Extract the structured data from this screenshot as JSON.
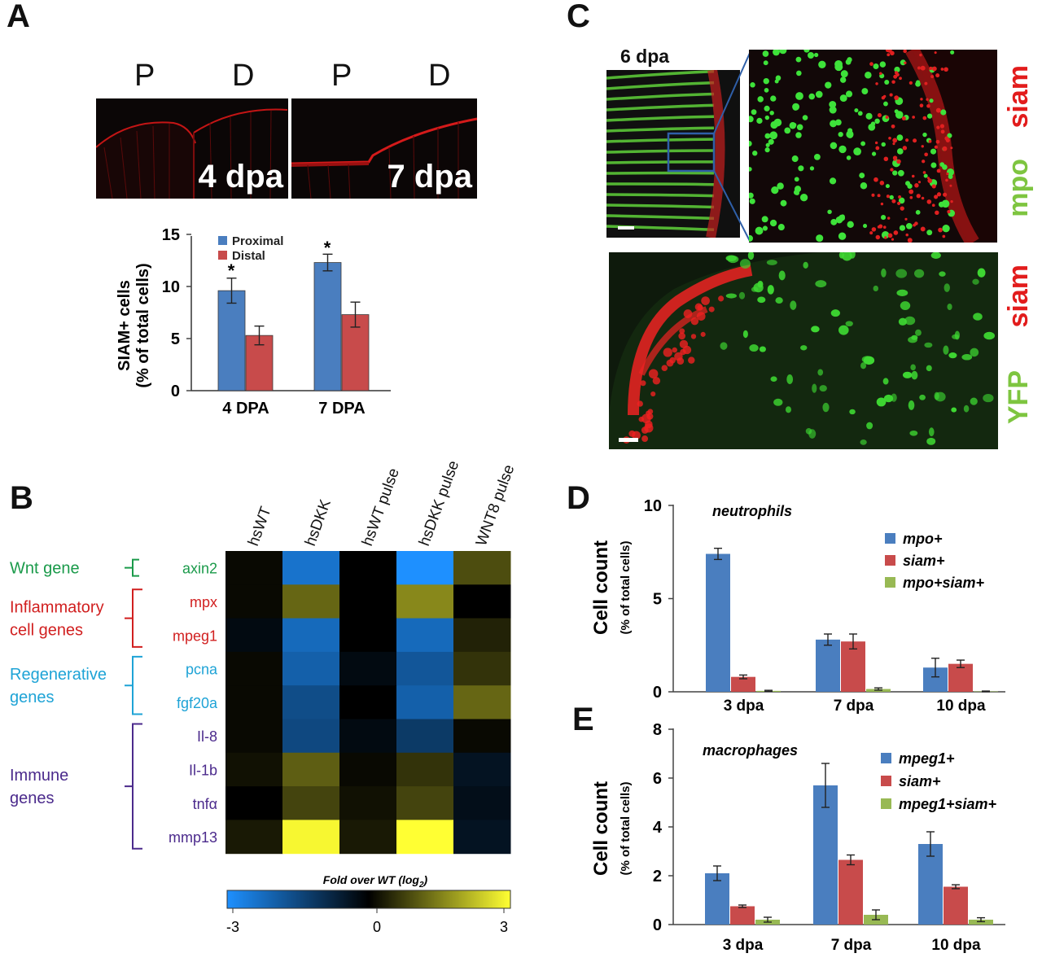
{
  "panels": {
    "A": "A",
    "B": "B",
    "C": "C",
    "D": "D",
    "E": "E"
  },
  "panelA": {
    "image_labels": {
      "p1": "P",
      "d1": "D",
      "p2": "P",
      "d2": "D"
    },
    "time_labels": [
      "4 dpa",
      "7 dpa"
    ]
  },
  "panelC": {
    "top_time": "6 dpa",
    "top_channels": {
      "red": "siam",
      "green": "mpo"
    },
    "bottom_channels": {
      "red": "siam",
      "green": "YFP"
    }
  },
  "heatmap": {
    "columns": [
      "hsWT",
      "hsDKK",
      "hsWT pulse",
      "hsDKK pulse",
      "WNT8 pulse"
    ],
    "rows": [
      "axin2",
      "mpx",
      "mpeg1",
      "pcna",
      "fgf20a",
      "Il-8",
      "Il-1b",
      "tnfα",
      "mmp13"
    ],
    "row_colors": [
      "#1a9a4a",
      "#d11f1f",
      "#d11f1f",
      "#1ea3d6",
      "#1ea3d6",
      "#4b2a8c",
      "#4b2a8c",
      "#4b2a8c",
      "#4b2a8c"
    ],
    "groups": [
      {
        "label": "Wnt gene",
        "color": "#1a9a4a",
        "rows": [
          0,
          0
        ]
      },
      {
        "label": "Inflammatory\ncell genes",
        "color": "#d11f1f",
        "rows": [
          1,
          2
        ]
      },
      {
        "label": "Regenerative\ngenes",
        "color": "#1ea3d6",
        "rows": [
          3,
          4
        ]
      },
      {
        "label": "Immune\ngenes",
        "color": "#4b2a8c",
        "rows": [
          5,
          8
        ]
      }
    ],
    "values": [
      [
        0.1,
        -2.4,
        0.0,
        -3.0,
        0.9
      ],
      [
        0.1,
        1.2,
        0.0,
        1.6,
        0.0
      ],
      [
        -0.2,
        -2.2,
        0.0,
        -2.2,
        0.4
      ],
      [
        0.1,
        -2.0,
        -0.2,
        -1.8,
        0.6
      ],
      [
        0.1,
        -1.6,
        0.0,
        -2.0,
        1.2
      ],
      [
        0.1,
        -1.5,
        -0.2,
        -1.2,
        0.1
      ],
      [
        0.2,
        1.1,
        0.1,
        0.6,
        -0.4
      ],
      [
        0.0,
        0.8,
        0.2,
        0.8,
        -0.3
      ],
      [
        0.3,
        2.9,
        0.3,
        3.0,
        -0.4
      ]
    ],
    "colorbar": {
      "title": "Fold over WT (log",
      "title_sub": "2",
      "title_end": ")",
      "ticks": [
        "-3",
        "0",
        "3"
      ],
      "min": -3,
      "max": 3
    },
    "palette": {
      "neg": "#1e90ff",
      "mid": "#000000",
      "pos": "#ffff33"
    }
  },
  "chart_data": [
    {
      "id": "A",
      "type": "bar",
      "categories": [
        "4 DPA",
        "7 DPA"
      ],
      "series": [
        {
          "name": "Proximal",
          "color": "#4a7ebf",
          "values": [
            9.6,
            12.3
          ],
          "errors": [
            1.2,
            0.8
          ]
        },
        {
          "name": "Distal",
          "color": "#c84b4b",
          "values": [
            5.3,
            7.3
          ],
          "errors": [
            0.9,
            1.2
          ]
        }
      ],
      "ylabel": "SIAM+ cells",
      "ylabel2": "(% of total cells)",
      "ylim": [
        0,
        15
      ],
      "yticks": [
        "0",
        "5",
        "10",
        "15"
      ],
      "annotations": [
        "*",
        "*"
      ],
      "legend": "top-left"
    },
    {
      "id": "D",
      "type": "bar",
      "title": "neutrophils",
      "categories": [
        "3 dpa",
        "7 dpa",
        "10 dpa"
      ],
      "series": [
        {
          "name": "mpo+",
          "color": "#4a7ebf",
          "values": [
            7.4,
            2.8,
            1.3
          ],
          "errors": [
            0.3,
            0.3,
            0.5
          ]
        },
        {
          "name": "siam+",
          "color": "#c84b4b",
          "values": [
            0.8,
            2.7,
            1.5
          ],
          "errors": [
            0.1,
            0.4,
            0.2
          ]
        },
        {
          "name": "mpo+siam+",
          "color": "#98b954",
          "values": [
            0.05,
            0.15,
            0.02
          ],
          "errors": [
            0.03,
            0.06,
            0.02
          ]
        }
      ],
      "ylabel": "Cell count",
      "ylabel2": "(% of total cells)",
      "ylim": [
        0,
        10
      ],
      "yticks": [
        "0",
        "5",
        "10"
      ],
      "legend": "top-right"
    },
    {
      "id": "E",
      "type": "bar",
      "title": "macrophages",
      "categories": [
        "3 dpa",
        "7 dpa",
        "10 dpa"
      ],
      "series": [
        {
          "name": "mpeg1+",
          "color": "#4a7ebf",
          "values": [
            2.1,
            5.7,
            3.3
          ],
          "errors": [
            0.3,
            0.9,
            0.5
          ]
        },
        {
          "name": "siam+",
          "color": "#c84b4b",
          "values": [
            0.75,
            2.65,
            1.55
          ],
          "errors": [
            0.05,
            0.2,
            0.08
          ]
        },
        {
          "name": "mpeg1+siam+",
          "color": "#98b954",
          "values": [
            0.2,
            0.4,
            0.2
          ],
          "errors": [
            0.1,
            0.2,
            0.08
          ]
        }
      ],
      "ylabel": "Cell count",
      "ylabel2": "(% of total cells)",
      "ylim": [
        0,
        8
      ],
      "yticks": [
        "0",
        "2",
        "4",
        "6",
        "8"
      ],
      "legend": "top-right"
    }
  ]
}
